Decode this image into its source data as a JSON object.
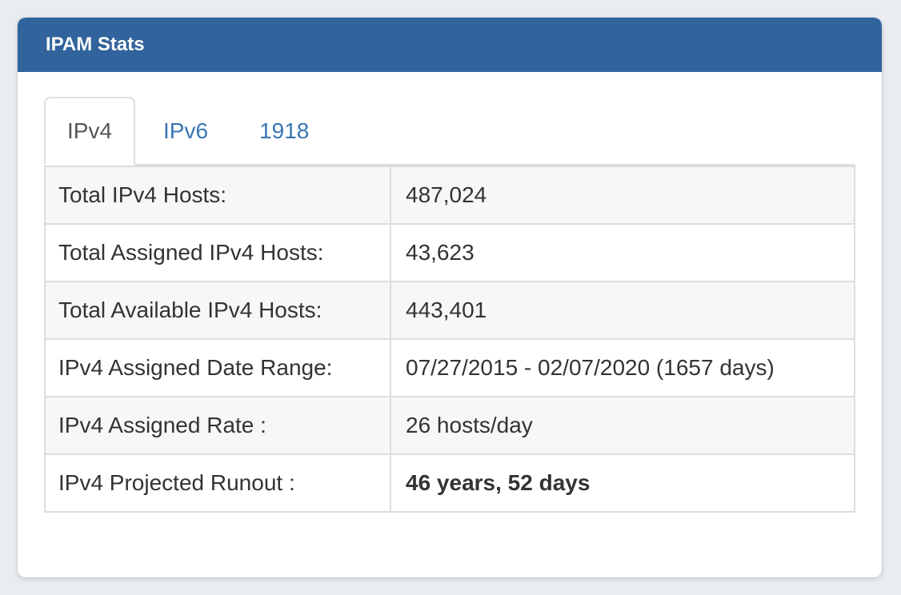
{
  "panel": {
    "title": "IPAM Stats"
  },
  "tabs": [
    {
      "label": "IPv4",
      "active": true
    },
    {
      "label": "IPv6",
      "active": false
    },
    {
      "label": "1918",
      "active": false
    }
  ],
  "table": {
    "rows": [
      {
        "label": "Total IPv4 Hosts:",
        "value": "487,024",
        "bold": false
      },
      {
        "label": "Total Assigned IPv4 Hosts:",
        "value": "43,623",
        "bold": false
      },
      {
        "label": "Total Available IPv4 Hosts:",
        "value": "443,401",
        "bold": false
      },
      {
        "label": "IPv4 Assigned Date Range:",
        "value": "07/27/2015 - 02/07/2020 (1657 days)",
        "bold": false
      },
      {
        "label": "IPv4 Assigned Rate :",
        "value": "26 hosts/day",
        "bold": false
      },
      {
        "label": "IPv4 Projected Runout :",
        "value": "46 years, 52 days",
        "bold": true
      }
    ]
  },
  "colors": {
    "page_background": "#e9edf0",
    "panel_background": "#ffffff",
    "header_background": "#31639c",
    "header_text": "#ffffff",
    "tab_link": "#3a76b4",
    "tab_active_text": "#555555",
    "table_border": "#dddddd",
    "stripe_row": "#f7f7f7",
    "body_text": "#333333"
  }
}
